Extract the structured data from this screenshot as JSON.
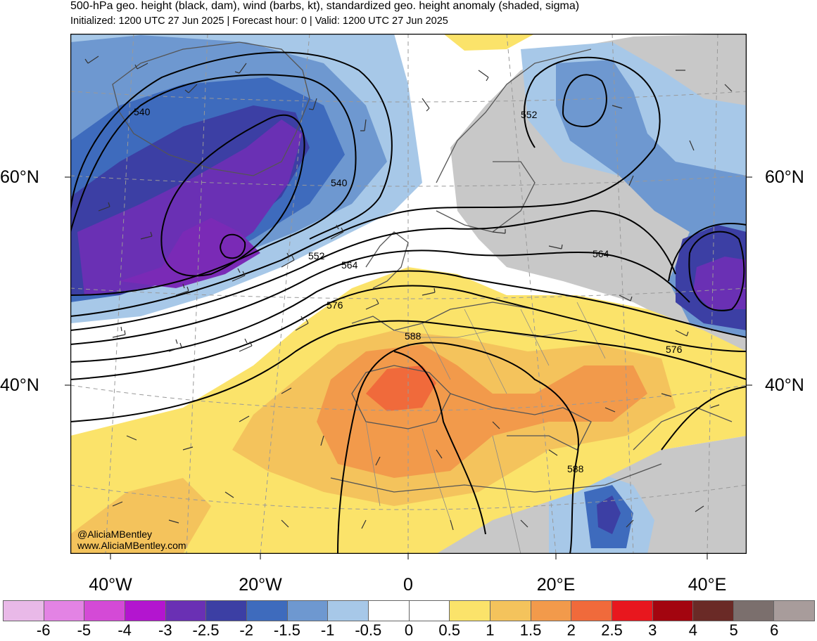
{
  "header": {
    "title": "500-hPa geo. height (black, dam), wind (barbs, kt), standardized geo. height anomaly (shaded, sigma)",
    "subtitle": "Initialized: 1200 UTC 27 Jun 2025 | Forecast hour: 0 | Valid: 1200 UTC 27 Jun 2025"
  },
  "axes": {
    "lat_left": [
      "60°N",
      "40°N"
    ],
    "lat_right": [
      "60°N",
      "40°N"
    ],
    "lon": [
      "40°W",
      "20°W",
      "0",
      "20°E",
      "40°E"
    ]
  },
  "contour_labels": [
    "540",
    "540",
    "552",
    "552",
    "564",
    "564",
    "576",
    "576",
    "588",
    "588"
  ],
  "credit": {
    "handle": "@AliciaMBentley",
    "site": "www.AliciaMBentley.com"
  },
  "colorbar": {
    "ticks": [
      "-6",
      "-5",
      "-4",
      "-3",
      "-2.5",
      "-2",
      "-1.5",
      "-1",
      "-0.5",
      "0",
      "0.5",
      "1",
      "1.5",
      "2",
      "2.5",
      "3",
      "4",
      "5",
      "6"
    ],
    "colors": [
      "#e9b9e8",
      "#e383e4",
      "#d44ad6",
      "#b315cf",
      "#6a30b4",
      "#3c3fa4",
      "#3e6bbd",
      "#6e98d0",
      "#a7c8e8",
      "#ffffff",
      "#ffffff",
      "#fbe36a",
      "#f4c35c",
      "#f29a4b",
      "#f06a3b",
      "#e8171e",
      "#a3050f",
      "#6a2a26",
      "#7b6f6d",
      "#a89c9b"
    ]
  }
}
